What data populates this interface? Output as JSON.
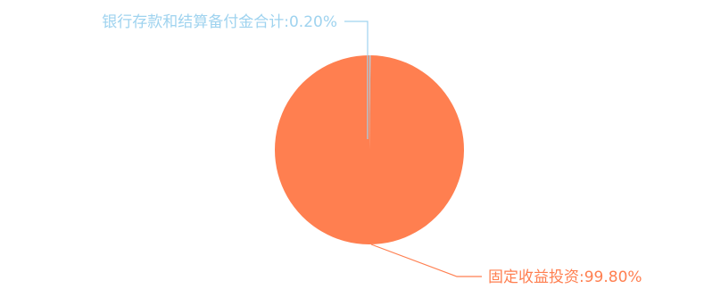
{
  "chart_data": {
    "type": "pie",
    "slices": [
      {
        "label": "银行存款和结算备付金合计",
        "value": 0.2,
        "display": "银行存款和结算备付金合计:0.20%",
        "color": "#9fd3ef"
      },
      {
        "label": "固定收益投资",
        "value": 99.8,
        "display": "固定收益投资:99.80%",
        "color": "#ff7f50"
      }
    ]
  }
}
